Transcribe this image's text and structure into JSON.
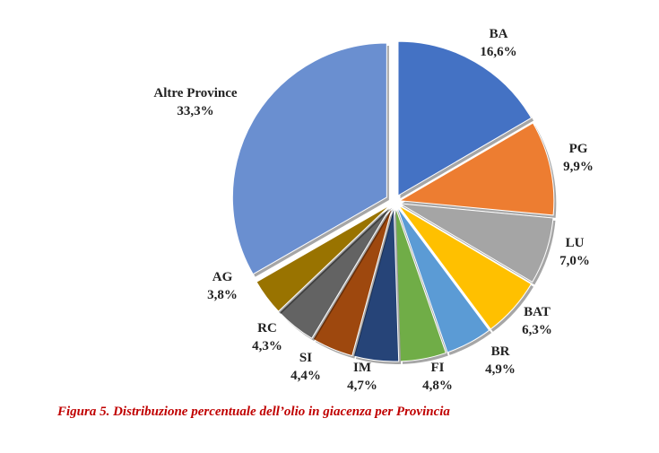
{
  "chart_data": {
    "type": "pie",
    "title": "",
    "categories": [
      "BA",
      "PG",
      "LU",
      "BAT",
      "BR",
      "FI",
      "IM",
      "SI",
      "RC",
      "AG",
      "Altre Province"
    ],
    "values": [
      16.6,
      9.9,
      7.0,
      6.3,
      4.9,
      4.8,
      4.7,
      4.4,
      4.3,
      3.8,
      33.3
    ],
    "value_labels": [
      "16,6%",
      "9,9%",
      "7,0%",
      "6,3%",
      "4,9%",
      "4,8%",
      "4,7%",
      "4,4%",
      "4,3%",
      "3,8%",
      "33,3%"
    ],
    "colors": [
      "#4472c4",
      "#ed7d31",
      "#a5a5a5",
      "#ffc000",
      "#5b9bd5",
      "#70ad47",
      "#264478",
      "#9e480e",
      "#636363",
      "#997300",
      "#6a8fd0"
    ],
    "exploded": true,
    "legend": "none"
  },
  "caption": "Figura 5. Distribuzione percentuale dell’olio in giacenza per Provincia"
}
